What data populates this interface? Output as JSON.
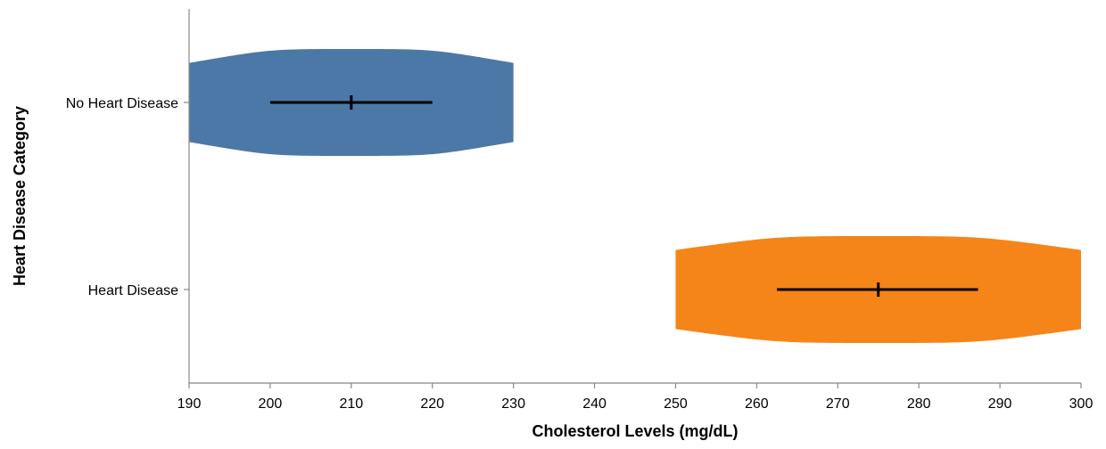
{
  "chart_data": {
    "type": "violin",
    "orientation": "horizontal",
    "xlabel": "Cholesterol Levels (mg/dL)",
    "ylabel": "Heart Disease Category",
    "xlim": [
      190,
      300
    ],
    "xticks": [
      190,
      200,
      210,
      220,
      230,
      240,
      250,
      260,
      270,
      280,
      290,
      300
    ],
    "grid": false,
    "series": [
      {
        "category": "No Heart Disease",
        "color": "#4c78a8",
        "range": [
          190,
          230
        ],
        "mean": 210,
        "ci": [
          200,
          220
        ],
        "density_at": [
          190,
          210,
          230
        ],
        "relative_width": [
          0.74,
          1.0,
          0.74
        ]
      },
      {
        "category": "Heart Disease",
        "color": "#f58518",
        "range": [
          250,
          300
        ],
        "mean": 275,
        "ci": [
          262.5,
          287.3
        ],
        "density_at": [
          250,
          275,
          300
        ],
        "relative_width": [
          0.74,
          1.0,
          0.74
        ]
      }
    ]
  }
}
